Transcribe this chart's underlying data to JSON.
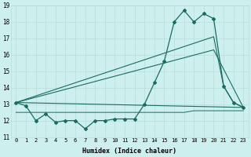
{
  "xlabel": "Humidex (Indice chaleur)",
  "x_ticks": [
    0,
    1,
    2,
    3,
    4,
    5,
    6,
    7,
    8,
    9,
    10,
    11,
    12,
    13,
    14,
    15,
    16,
    17,
    18,
    19,
    20,
    21,
    22,
    23
  ],
  "ylim": [
    11,
    19
  ],
  "y_ticks": [
    11,
    12,
    13,
    14,
    15,
    16,
    17,
    18,
    19
  ],
  "bg_color": "#cdf0ee",
  "grid_color": "#b8dcd8",
  "line_color": "#1a6b60",
  "series": {
    "line1_x": [
      0,
      1,
      2,
      3,
      4,
      5,
      6,
      7,
      8,
      9,
      10,
      11,
      12,
      13,
      14,
      15,
      16,
      17,
      18,
      19,
      20,
      21,
      22,
      23
    ],
    "line1_y": [
      13.1,
      12.9,
      12.0,
      12.4,
      11.9,
      12.0,
      12.0,
      11.5,
      12.0,
      12.0,
      12.1,
      12.1,
      12.1,
      13.0,
      14.3,
      15.6,
      18.0,
      18.7,
      18.0,
      18.5,
      18.2,
      14.1,
      13.1,
      12.8
    ],
    "line2_x": [
      0,
      23
    ],
    "line2_y": [
      13.1,
      12.8
    ],
    "line3_x": [
      0,
      20,
      23
    ],
    "line3_y": [
      13.1,
      16.3,
      12.8
    ],
    "line4_x": [
      0,
      20,
      21,
      22,
      23
    ],
    "line4_y": [
      13.1,
      17.1,
      14.1,
      13.1,
      12.8
    ],
    "line5_x": [
      0,
      1,
      2,
      3,
      4,
      5,
      6,
      7,
      8,
      9,
      10,
      11,
      12,
      13,
      14,
      15,
      16,
      17,
      18,
      19,
      20,
      21,
      22,
      23
    ],
    "line5_y": [
      12.5,
      12.5,
      12.5,
      12.5,
      12.5,
      12.5,
      12.5,
      12.5,
      12.5,
      12.5,
      12.5,
      12.5,
      12.5,
      12.5,
      12.5,
      12.5,
      12.5,
      12.5,
      12.6,
      12.6,
      12.6,
      12.6,
      12.6,
      12.6
    ]
  }
}
